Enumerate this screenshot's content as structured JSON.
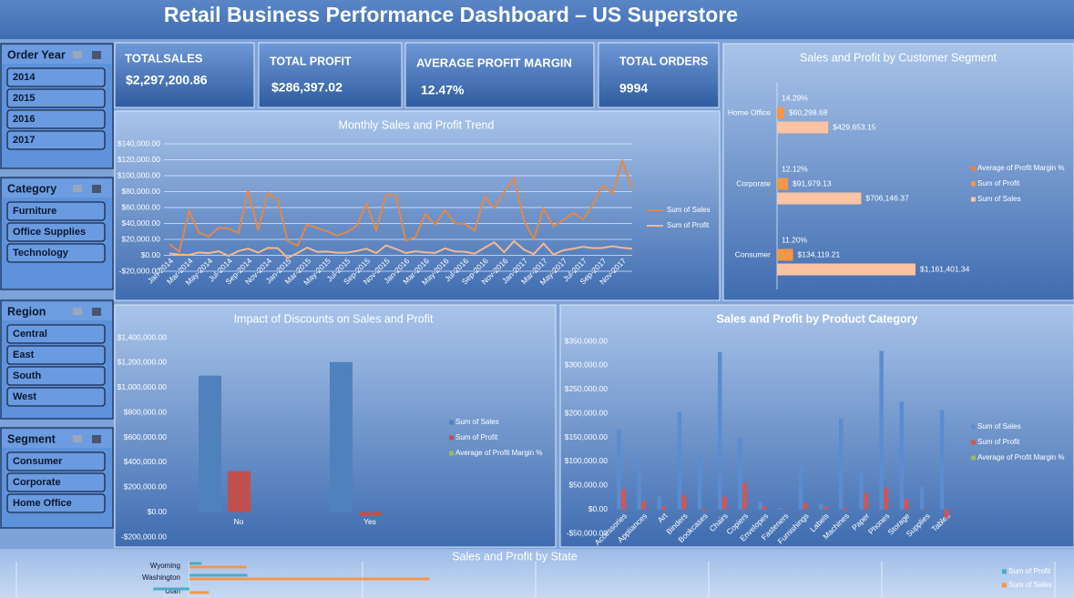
{
  "header": {
    "title": "Retail Business Performance Dashboard – US Superstore"
  },
  "slicers": [
    {
      "title": "Order Year",
      "items": [
        "2014",
        "2015",
        "2016",
        "2017"
      ]
    },
    {
      "title": "Category",
      "items": [
        "Furniture",
        "Office Supplies",
        "Technology"
      ]
    },
    {
      "title": "Region",
      "items": [
        "Central",
        "East",
        "South",
        "West"
      ]
    },
    {
      "title": "Segment",
      "items": [
        "Consumer",
        "Corporate",
        "Home Office"
      ]
    }
  ],
  "kpis": [
    {
      "label": "TOTALSALES",
      "value": "$2,297,200.86"
    },
    {
      "label": "TOTAL PROFIT",
      "value": "$286,397.02"
    },
    {
      "label": "AVERAGE PROFIT MARGIN",
      "value": "12.47%"
    },
    {
      "label": "TOTAL ORDERS",
      "value": "9994"
    }
  ],
  "chart_data": [
    {
      "type": "line",
      "title": "Monthly Sales and Profit Trend",
      "categories": [
        "Jan-2014",
        null,
        "Mar-2014",
        null,
        "May-2014",
        null,
        "Jul-2014",
        null,
        "Sep-2014",
        null,
        "Nov-2014",
        null,
        "Jan-2015",
        null,
        "Mar-2015",
        null,
        "May-2015",
        null,
        "Jul-2015",
        null,
        "Sep-2015",
        null,
        "Nov-2015",
        null,
        "Jan-2016",
        null,
        "Mar-2016",
        null,
        "May-2016",
        null,
        "Jul-2016",
        null,
        "Sep-2016",
        null,
        "Nov-2016",
        null,
        "Jan-2017",
        null,
        "Mar-2017",
        null,
        "May-2017",
        null,
        "Jul-2017",
        null,
        "Sep-2017",
        null,
        "Nov-2017",
        null
      ],
      "series": [
        {
          "name": "Sum of Sales",
          "color": "#e0894a",
          "values": [
            14237,
            4520,
            55691,
            28295,
            23648,
            34595,
            33946,
            27909,
            81777,
            31453,
            78629,
            69546,
            18174,
            11951,
            38726,
            34195,
            30132,
            24797,
            28765,
            36898,
            64596,
            31404,
            75972,
            74919,
            18542,
            22979,
            51716,
            38750,
            56988,
            40344,
            39262,
            31115,
            73410,
            59688,
            79412,
            96999,
            43971,
            20301,
            58872,
            36522,
            44261,
            52982,
            45264,
            63121,
            87866,
            77777,
            118448,
            83829
          ]
        },
        {
          "name": "Sum of Profit",
          "color": "#f6b88e",
          "values": [
            2450,
            862,
            498,
            3489,
            2738,
            4977,
            -841,
            5318,
            8329,
            3448,
            9292,
            8983,
            -3281,
            2814,
            9732,
            4188,
            4668,
            3335,
            3289,
            5355,
            8210,
            2818,
            12474,
            8016,
            2824,
            5005,
            3611,
            2978,
            8662,
            4751,
            4433,
            2063,
            9328,
            16243,
            4012,
            17885,
            7140,
            1614,
            14752,
            933,
            6342,
            8223,
            10745,
            9041,
            9273,
            11485,
            9392,
            8484
          ]
        }
      ],
      "ylim": [
        -20000,
        140000
      ],
      "yticks": [
        {
          "value": -20000,
          "label": "-$20,000.00"
        },
        {
          "value": 0,
          "label": "$0.00"
        },
        {
          "value": 20000,
          "label": "$20,000.00"
        },
        {
          "value": 40000,
          "label": "$40,000.00"
        },
        {
          "value": 60000,
          "label": "$60,000.00"
        },
        {
          "value": 80000,
          "label": "$80,000.00"
        },
        {
          "value": 100000,
          "label": "$100,000.00"
        },
        {
          "value": 120000,
          "label": "$120,000.00"
        },
        {
          "value": 140000,
          "label": "$140,000.00"
        }
      ],
      "grid": true,
      "legend": "right"
    },
    {
      "type": "bar",
      "orientation": "horizontal",
      "title": "Sales and Profit by Customer Segment",
      "categories": [
        "Home Office",
        "Corporate",
        "Consumer"
      ],
      "series": [
        {
          "name": "Average of Profit Margin %",
          "color": "#e8843a",
          "values": [
            14.29,
            12.12,
            11.2
          ],
          "value_labels": [
            "14.29%",
            "12.12%",
            "11.20%"
          ]
        },
        {
          "name": "Sum of Profit",
          "color": "#f79646",
          "values": [
            60298.68,
            91979.13,
            134119.21
          ],
          "value_labels": [
            "$60,298.68",
            "$91,979.13",
            "$134,119.21"
          ]
        },
        {
          "name": "Sum of Sales",
          "color": "#fbc3a2",
          "values": [
            429653.15,
            706146.37,
            1161401.34
          ],
          "value_labels": [
            "$429,653.15",
            "$706,146.37",
            "$1,161,401.34"
          ]
        }
      ],
      "legend": "right"
    },
    {
      "type": "bar",
      "title": "Impact of Discounts on Sales and Profit",
      "categories": [
        "No",
        "Yes"
      ],
      "series": [
        {
          "name": "Sum of Sales",
          "color": "#4f81bd",
          "values": [
            1095000,
            1204000
          ]
        },
        {
          "name": "Sum of Profit",
          "color": "#c0504d",
          "values": [
            328000,
            -32000
          ]
        },
        {
          "name": "Average of Profit Margin %",
          "color": "#9bbb59",
          "values": [
            34.0,
            -11.6
          ]
        }
      ],
      "ylim": [
        -200000,
        1400000
      ],
      "yticks": [
        {
          "value": -200000,
          "label": "-$200,000.00"
        },
        {
          "value": 0,
          "label": "$0.00"
        },
        {
          "value": 200000,
          "label": "$200,000.00"
        },
        {
          "value": 400000,
          "label": "$400,000.00"
        },
        {
          "value": 600000,
          "label": "$600,000.00"
        },
        {
          "value": 800000,
          "label": "$800,000.00"
        },
        {
          "value": 1000000,
          "label": "$1,000,000.00"
        },
        {
          "value": 1200000,
          "label": "$1,200,000.00"
        },
        {
          "value": 1400000,
          "label": "$1,400,000.00"
        }
      ],
      "grid": false,
      "legend": "right"
    },
    {
      "type": "bar",
      "title": "Sales and Profit by Product Category",
      "categories": [
        "Accessories",
        "Appliances",
        "Art",
        "Binders",
        "Bookcases",
        "Chairs",
        "Copiers",
        "Envelopes",
        "Fasteners",
        "Furnishings",
        "Labels",
        "Machines",
        "Paper",
        "Phones",
        "Storage",
        "Supplies",
        "Tables"
      ],
      "series": [
        {
          "name": "Sum of Sales",
          "color": "#5b8cd0",
          "values": [
            167000,
            107000,
            27000,
            203000,
            115000,
            328000,
            150000,
            16000,
            3000,
            92000,
            12000,
            189000,
            78000,
            330000,
            224000,
            47000,
            207000
          ]
        },
        {
          "name": "Sum of Profit",
          "color": "#d9534f",
          "values": [
            42000,
            18000,
            6500,
            30000,
            -3500,
            26600,
            55600,
            6900,
            950,
            13000,
            5500,
            3400,
            34000,
            44500,
            21000,
            -1200,
            -17700
          ]
        },
        {
          "name": "Average of Profit Margin %",
          "color": "#9bbb59",
          "values": [
            21.6,
            -16.5,
            23.3,
            -19.5,
            -3.0,
            4.3,
            31.7,
            42.3,
            30.1,
            13.6,
            43.1,
            -2.2,
            43.4,
            11.9,
            9.3,
            11.2,
            -15.5
          ]
        }
      ],
      "ylim": [
        -50000,
        350000
      ],
      "yticks": [
        {
          "value": -50000,
          "label": "-$50,000.00"
        },
        {
          "value": 0,
          "label": "$0.00"
        },
        {
          "value": 50000,
          "label": "$50,000.00"
        },
        {
          "value": 100000,
          "label": "$100,000.00"
        },
        {
          "value": 150000,
          "label": "$150,000.00"
        },
        {
          "value": 200000,
          "label": "$200,000.00"
        },
        {
          "value": 250000,
          "label": "$250,000.00"
        },
        {
          "value": 300000,
          "label": "$300,000.00"
        },
        {
          "value": 350000,
          "label": "$350,000.00"
        }
      ],
      "grid": false,
      "legend": "right"
    },
    {
      "type": "bar",
      "orientation": "horizontal",
      "title": "Sales and Profit by State",
      "categories": [
        "Wyoming",
        "Washington",
        "Utah"
      ],
      "series": [
        {
          "name": "Sum of Profit",
          "color": "#4bacc6",
          "values": [
            7000,
            33403,
            -21000
          ]
        },
        {
          "name": "Sum of Sales",
          "color": "#f79646",
          "values": [
            33000,
            138641,
            11220
          ]
        }
      ],
      "xlim": [
        -100000,
        500000
      ],
      "xticks": [
        -100000,
        0,
        100000,
        200000,
        300000,
        400000,
        500000
      ],
      "grid": true,
      "legend": "right"
    }
  ]
}
